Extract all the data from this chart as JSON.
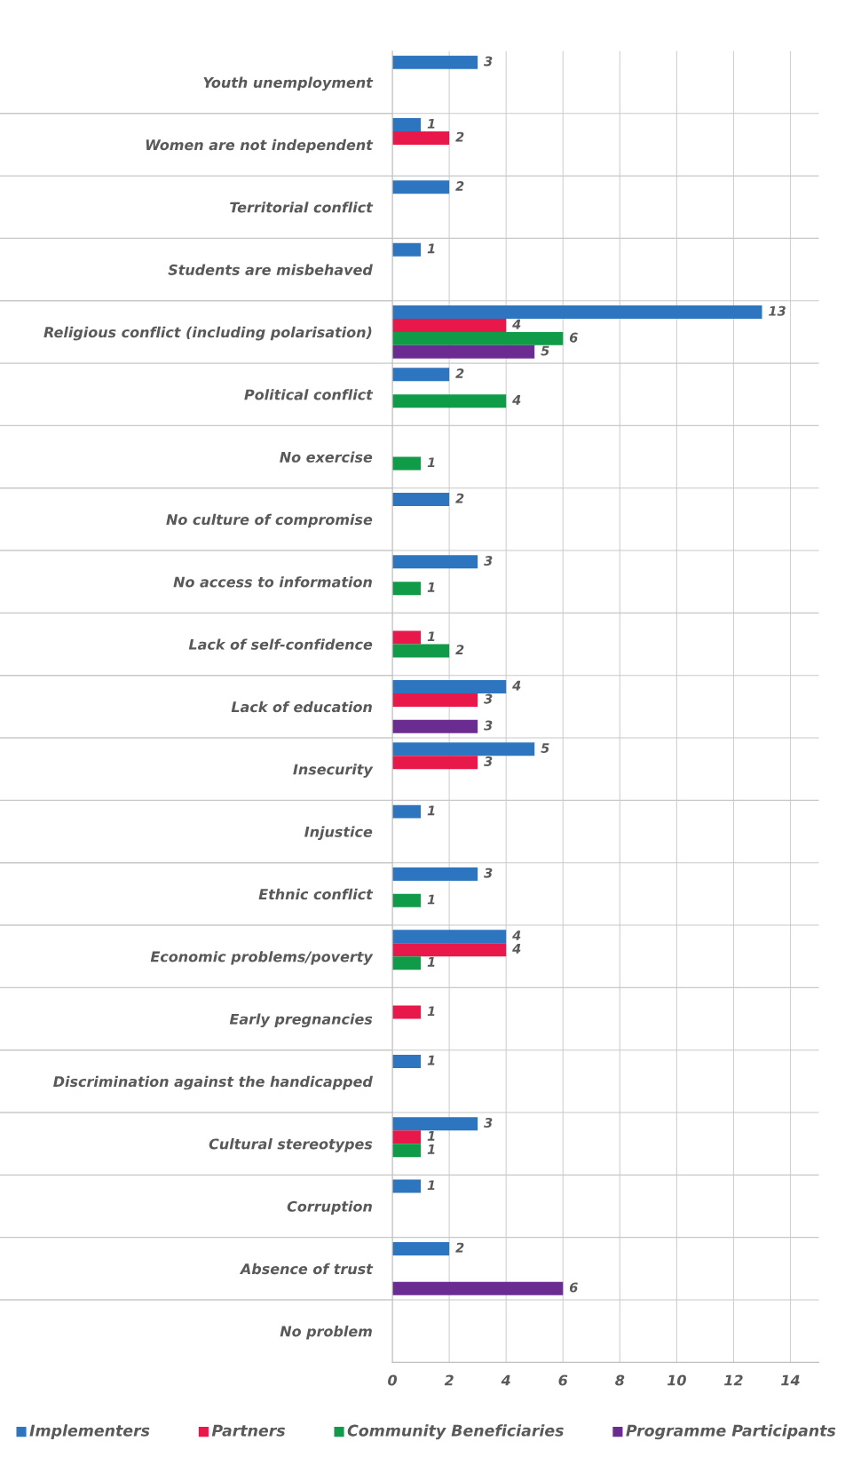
{
  "chart_data": {
    "type": "bar",
    "orientation": "horizontal",
    "categories": [
      "Youth unemployment",
      "Women are not independent",
      "Territorial conflict",
      "Students are misbehaved",
      "Religious conflict (including polarisation)",
      "Political conflict",
      "No exercise",
      "No culture of compromise",
      "No access to information",
      "Lack of self-confidence",
      "Lack of education",
      "Insecurity",
      "Injustice",
      "Ethnic conflict",
      "Economic problems/poverty",
      "Early pregnancies",
      "Discrimination against the handicapped",
      "Cultural stereotypes",
      "Corruption",
      "Absence of trust",
      "No problem"
    ],
    "series": [
      {
        "name": "Implementers",
        "color": "#2e75c0",
        "values": [
          3,
          1,
          2,
          1,
          13,
          2,
          null,
          2,
          3,
          null,
          4,
          5,
          1,
          3,
          4,
          null,
          1,
          3,
          1,
          2,
          null
        ]
      },
      {
        "name": "Partners",
        "color": "#e8194a",
        "values": [
          null,
          2,
          null,
          null,
          4,
          null,
          null,
          null,
          null,
          1,
          3,
          3,
          null,
          null,
          4,
          1,
          null,
          1,
          null,
          null,
          null
        ]
      },
      {
        "name": "Community Beneficiaries",
        "color": "#0f9b48",
        "values": [
          null,
          null,
          null,
          null,
          6,
          4,
          1,
          null,
          1,
          2,
          null,
          null,
          null,
          1,
          1,
          null,
          null,
          1,
          null,
          null,
          null
        ]
      },
      {
        "name": "Programme Participants",
        "color": "#6a2c91",
        "values": [
          null,
          null,
          null,
          null,
          5,
          null,
          null,
          null,
          null,
          null,
          3,
          null,
          null,
          null,
          null,
          null,
          null,
          null,
          null,
          6,
          null
        ]
      }
    ],
    "xlim": [
      0,
      15
    ],
    "xticks": [
      0,
      2,
      4,
      6,
      8,
      10,
      12,
      14
    ],
    "grid": "x",
    "legend": "bottom",
    "data_labels": true
  }
}
